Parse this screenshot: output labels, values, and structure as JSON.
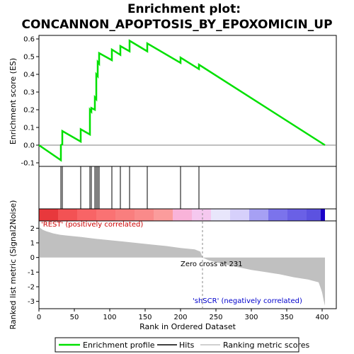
{
  "title_line1": "Enrichment plot:",
  "title_line2": "CONCANNON_APOPTOSIS_BY_EPOXOMICIN_UP",
  "es_ylabel": "Enrichment score (ES)",
  "rank_ylabel": "Ranked list metric (Signal2Noise)",
  "xlabel": "Rank in Ordered Dataset",
  "pos_label": "'REST' (positively correlated)",
  "neg_label": "'shSCR' (negatively correlated)",
  "zero_cross_label": "Zero cross at 231",
  "legend": {
    "enrichment": "Enrichment profile",
    "hits": "Hits",
    "ranking": "Ranking metric scores"
  },
  "colors": {
    "enrichment": "#00e000",
    "hits": "#000000",
    "ranking": "#c0c0c0",
    "zero_line": "#888888",
    "pos_label": "#cc0000",
    "neg_label": "#0000cc"
  },
  "chart_data": {
    "type": "line",
    "xlim": [
      0,
      420
    ],
    "x_ticks": [
      0,
      50,
      100,
      150,
      200,
      250,
      300,
      350,
      400
    ],
    "es_ylim": [
      -0.12,
      0.62
    ],
    "es_ticks": [
      -0.1,
      0.0,
      0.1,
      0.2,
      0.3,
      0.4,
      0.5,
      0.6
    ],
    "es_tick_labels": [
      "-0.1",
      "0.0",
      "0.1",
      "0.2",
      "0.3",
      "0.4",
      "0.5",
      "0.6"
    ],
    "metric_ylim": [
      -3.5,
      2.5
    ],
    "metric_ticks": [
      -3,
      -2,
      -1,
      0,
      1,
      2
    ],
    "n_genes": 404,
    "zero_cross": 231,
    "hits": [
      31,
      33,
      59,
      72,
      74,
      79,
      81,
      83,
      85,
      103,
      115,
      128,
      153,
      200,
      226
    ],
    "enrichment_profile": {
      "x": [
        0,
        31,
        31,
        33,
        33,
        59,
        59,
        72,
        72,
        74,
        74,
        79,
        79,
        81,
        81,
        83,
        83,
        85,
        85,
        103,
        103,
        115,
        115,
        128,
        128,
        153,
        153,
        200,
        200,
        226,
        226,
        404
      ],
      "y": [
        0.0,
        -0.085,
        0.0,
        0.005,
        0.08,
        0.02,
        0.09,
        0.06,
        0.2,
        0.19,
        0.21,
        0.2,
        0.27,
        0.26,
        0.4,
        0.39,
        0.47,
        0.46,
        0.52,
        0.48,
        0.54,
        0.51,
        0.56,
        0.53,
        0.59,
        0.53,
        0.575,
        0.465,
        0.495,
        0.43,
        0.455,
        0.0
      ]
    },
    "ranking_metric": {
      "x": [
        1,
        5,
        10,
        20,
        30,
        40,
        60,
        80,
        100,
        120,
        140,
        160,
        180,
        200,
        220,
        228,
        231,
        240,
        260,
        280,
        300,
        320,
        340,
        360,
        380,
        395,
        398,
        400,
        402,
        404
      ],
      "y": [
        2.05,
        1.9,
        1.8,
        1.65,
        1.55,
        1.5,
        1.4,
        1.28,
        1.18,
        1.08,
        0.98,
        0.88,
        0.78,
        0.65,
        0.55,
        0.4,
        0.0,
        -0.2,
        -0.45,
        -0.65,
        -0.85,
        -1.0,
        -1.15,
        -1.35,
        -1.5,
        -1.7,
        -2.1,
        -2.4,
        -2.9,
        -3.3
      ]
    }
  }
}
